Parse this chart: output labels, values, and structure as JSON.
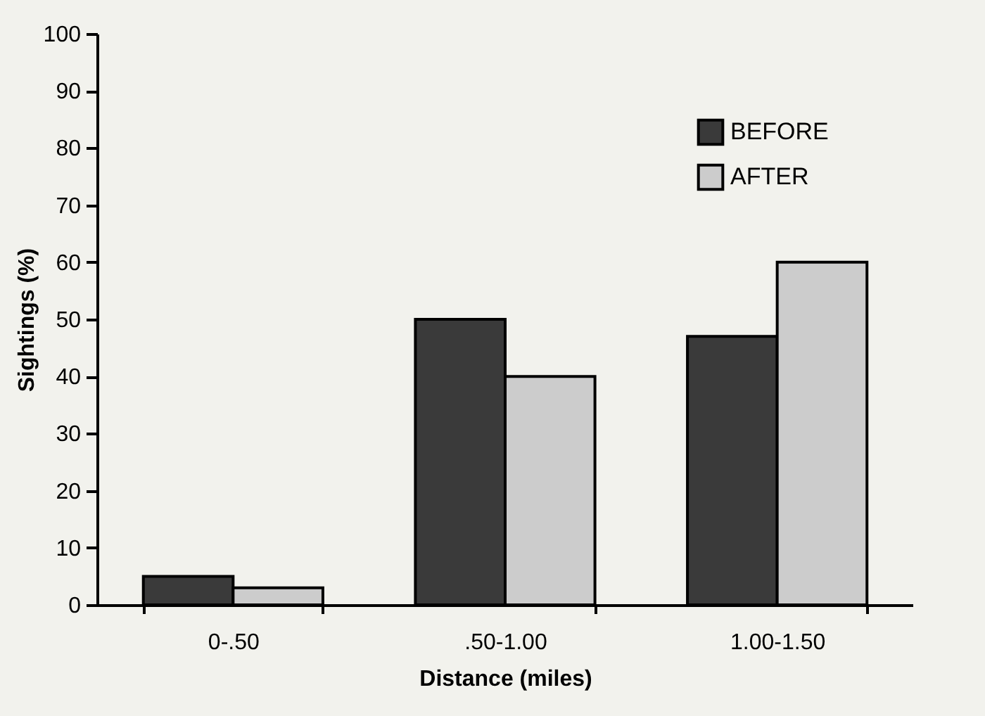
{
  "chart_data": {
    "type": "bar",
    "xlabel": "Distance (miles)",
    "ylabel": "Sightings (%)",
    "categories": [
      "0-.50",
      ".50-1.00",
      "1.00-1.50"
    ],
    "series": [
      {
        "name": "BEFORE",
        "color": "#3a3a3a",
        "values": [
          5,
          50,
          47
        ]
      },
      {
        "name": "AFTER",
        "color": "#cccccc",
        "values": [
          3,
          40,
          60
        ]
      }
    ],
    "ylim": [
      0,
      100
    ],
    "yticks": [
      0,
      10,
      20,
      30,
      40,
      50,
      60,
      70,
      80,
      90,
      100
    ],
    "legend": "top right"
  }
}
